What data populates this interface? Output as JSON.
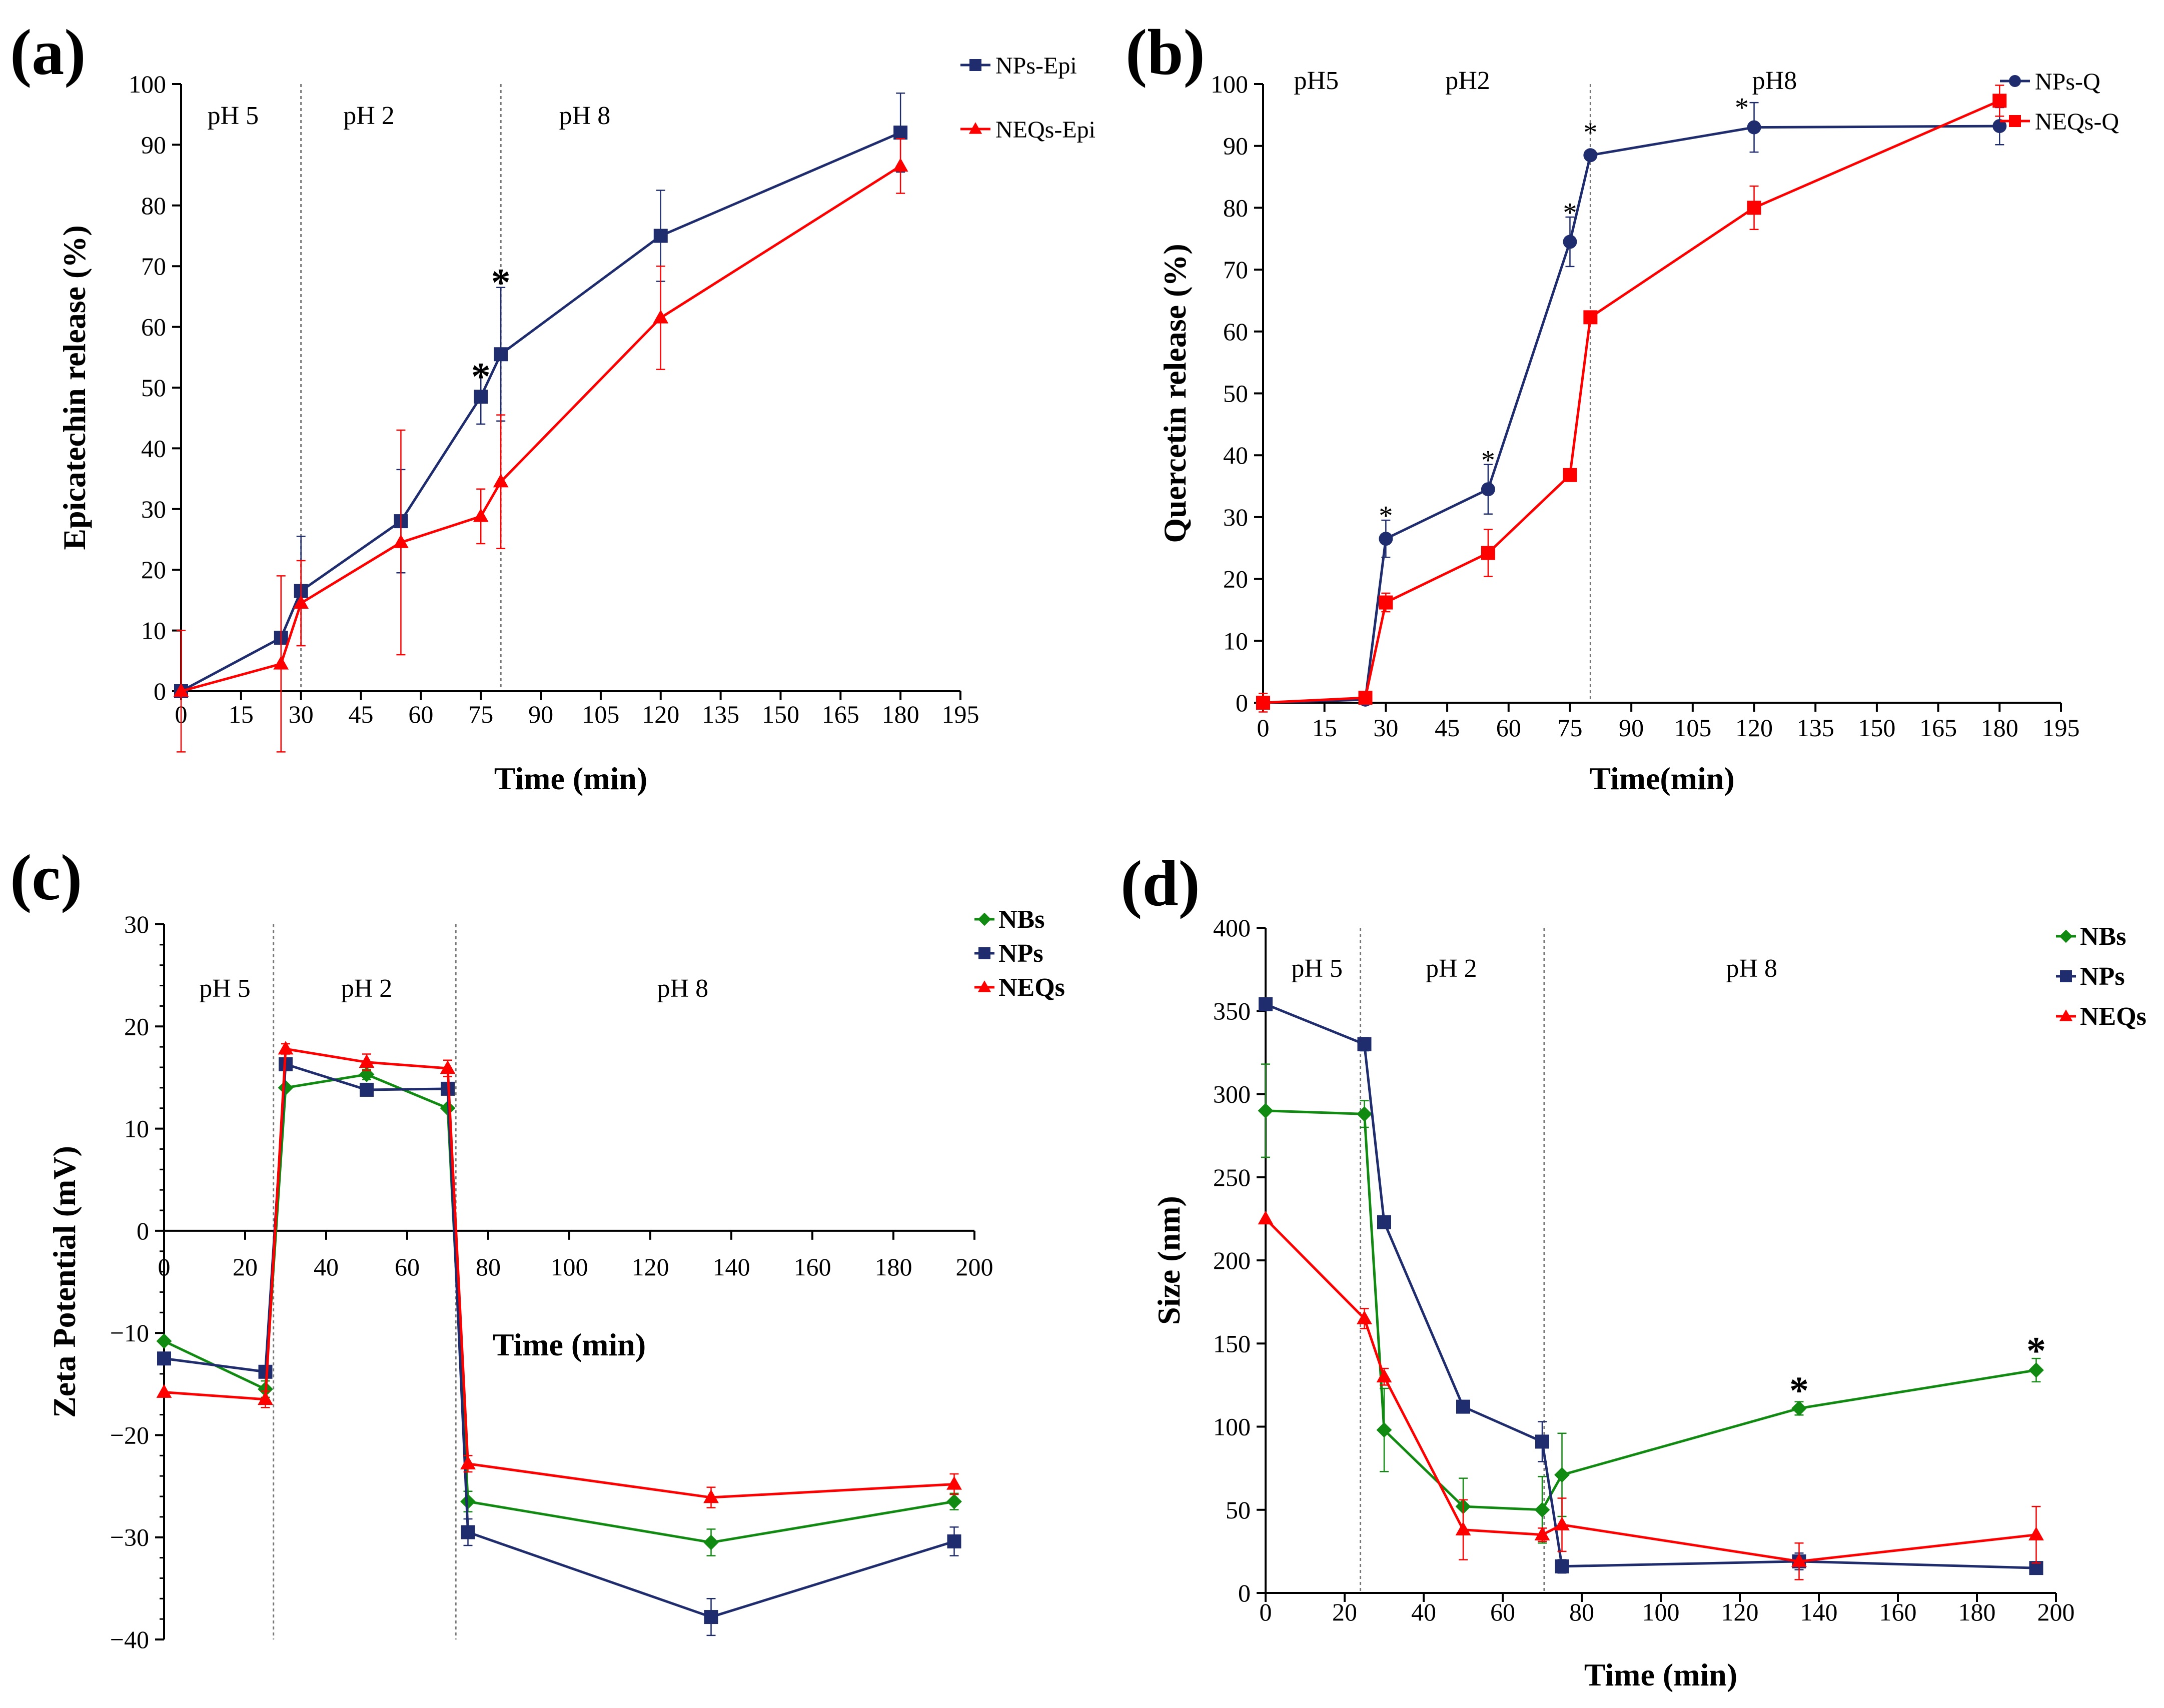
{
  "chart_data": [
    {
      "id": "a",
      "type": "line",
      "panel_label": "(a)",
      "xlabel": "Time (min)",
      "ylabel": "Epicatechin  release (%)",
      "xlim": [
        0,
        195
      ],
      "ylim": [
        0,
        100
      ],
      "xticks": [
        0,
        15,
        30,
        45,
        60,
        75,
        90,
        105,
        120,
        135,
        150,
        165,
        180,
        195
      ],
      "yticks": [
        0,
        10,
        20,
        30,
        40,
        50,
        60,
        70,
        80,
        90,
        100
      ],
      "ph_labels": [
        {
          "text": "pH 5",
          "x": 13
        },
        {
          "text": "pH 2",
          "x": 47
        },
        {
          "text": "pH 8",
          "x": 101
        }
      ],
      "dividers": [
        30,
        80
      ],
      "legend": [
        "NPs-Epi",
        "NEQs-Epi"
      ],
      "series": [
        {
          "name": "NPs-Epi",
          "color": "#1f2d6e",
          "marker": "square",
          "x": [
            0,
            25,
            30,
            55,
            75,
            80,
            120,
            180
          ],
          "y": [
            0,
            8.8,
            16.5,
            28,
            48.5,
            55.5,
            75,
            92
          ],
          "err": [
            0,
            0,
            9,
            8.5,
            4.5,
            11,
            7.5,
            6.5
          ]
        },
        {
          "name": "NEQs-Epi",
          "color": "#ff0000",
          "marker": "triangle",
          "x": [
            0,
            25,
            30,
            55,
            75,
            80,
            120,
            180
          ],
          "y": [
            0,
            4.5,
            14.5,
            24.5,
            28.8,
            34.5,
            61.5,
            86.5
          ],
          "err": [
            10,
            14.5,
            7,
            18.5,
            4.5,
            11,
            8.5,
            4.5
          ]
        }
      ],
      "annotations": [
        {
          "text": "*",
          "x": 75,
          "y": 53
        },
        {
          "text": "*",
          "x": 80,
          "y": 68.5
        }
      ]
    },
    {
      "id": "b",
      "type": "line",
      "panel_label": "(b)",
      "xlabel": "Time(min)",
      "ylabel": "Quercetin release (%)",
      "xlim": [
        0,
        195
      ],
      "ylim": [
        0,
        100
      ],
      "xticks": [
        0,
        15,
        30,
        45,
        60,
        75,
        90,
        105,
        120,
        135,
        150,
        165,
        180,
        195
      ],
      "yticks": [
        0,
        10,
        20,
        30,
        40,
        50,
        60,
        70,
        80,
        90,
        100
      ],
      "ph_labels": [
        {
          "text": "pH5",
          "x": 13
        },
        {
          "text": "pH2",
          "x": 50
        },
        {
          "text": "pH8",
          "x": 125
        }
      ],
      "dividers": [
        80
      ],
      "legend": [
        "NPs-Q",
        "NEQs-Q"
      ],
      "series": [
        {
          "name": "NPs-Q",
          "color": "#1f2d6e",
          "marker": "circle",
          "x": [
            0,
            25,
            30,
            55,
            75,
            80,
            120,
            180
          ],
          "y": [
            0,
            0.5,
            26.5,
            34.5,
            74.5,
            88.5,
            93,
            93.2
          ],
          "err": [
            0,
            0,
            3,
            4,
            4,
            0.8,
            4,
            3
          ]
        },
        {
          "name": "NEQs-Q",
          "color": "#ff0000",
          "marker": "square",
          "x": [
            0,
            25,
            30,
            55,
            75,
            80,
            120,
            180
          ],
          "y": [
            0,
            0.8,
            16.2,
            24.2,
            36.8,
            62.3,
            80,
            97.3
          ],
          "err": [
            1.5,
            0,
            1.5,
            3.8,
            0.8,
            1,
            3.5,
            2.5
          ]
        }
      ],
      "annotations": [
        {
          "text": "*",
          "x": 30,
          "y": 30.5
        },
        {
          "text": "*",
          "x": 55,
          "y": 39.5
        },
        {
          "text": "*",
          "x": 75,
          "y": 79.5
        },
        {
          "text": "*",
          "x": 80,
          "y": 92.5
        },
        {
          "text": "*",
          "x": 117,
          "y": 96.5
        }
      ]
    },
    {
      "id": "c",
      "type": "line",
      "panel_label": "(c)",
      "xlabel": "Time (min)",
      "ylabel": "Zeta Potential (mV)",
      "xlim": [
        0,
        200
      ],
      "ylim": [
        -40,
        30
      ],
      "xticks": [
        0,
        20,
        40,
        60,
        80,
        100,
        120,
        140,
        160,
        180,
        200
      ],
      "yticks": [
        -40,
        -30,
        -20,
        -10,
        0,
        10,
        20,
        30
      ],
      "ph_labels": [
        {
          "text": "pH 5",
          "x": 15
        },
        {
          "text": "pH 2",
          "x": 50
        },
        {
          "text": "pH 8",
          "x": 128
        }
      ],
      "dividers": [
        27,
        72
      ],
      "legend": [
        "NBs",
        "NPs",
        "NEQs"
      ],
      "series": [
        {
          "name": "NBs",
          "color": "#108a10",
          "marker": "diamond",
          "x": [
            0,
            25,
            30,
            50,
            70,
            75,
            135,
            195
          ],
          "y": [
            -10.8,
            -15.5,
            14,
            15.3,
            12,
            -26.5,
            -30.5,
            -26.5
          ],
          "err": [
            0,
            0.8,
            0,
            0.5,
            0,
            1,
            1.3,
            0.8
          ]
        },
        {
          "name": "NPs",
          "color": "#1f2d6e",
          "marker": "square",
          "x": [
            0,
            25,
            30,
            50,
            70,
            75,
            135,
            195
          ],
          "y": [
            -12.5,
            -13.8,
            16.3,
            13.8,
            13.9,
            -29.5,
            -37.8,
            -30.4
          ],
          "err": [
            0,
            0,
            0,
            0,
            0,
            1.3,
            1.8,
            1.4
          ]
        },
        {
          "name": "NEQs",
          "color": "#ff0000",
          "marker": "triangle",
          "x": [
            0,
            25,
            30,
            50,
            70,
            75,
            135,
            195
          ],
          "y": [
            -15.8,
            -16.5,
            17.8,
            16.5,
            15.9,
            -22.8,
            -26.1,
            -24.8
          ],
          "err": [
            0,
            0.8,
            0.5,
            0.8,
            0.8,
            0.8,
            1,
            1
          ]
        }
      ],
      "annotations": []
    },
    {
      "id": "d",
      "type": "line",
      "panel_label": "(d)",
      "xlabel": "Time (min)",
      "ylabel": "Size (nm)",
      "xlim": [
        0,
        200
      ],
      "ylim": [
        0,
        400
      ],
      "xticks": [
        0,
        20,
        40,
        60,
        80,
        100,
        120,
        140,
        160,
        180,
        200
      ],
      "yticks": [
        0,
        50,
        100,
        150,
        200,
        250,
        300,
        350,
        400
      ],
      "ph_labels": [
        {
          "text": "pH 5",
          "x": 13
        },
        {
          "text": "pH 2",
          "x": 47
        },
        {
          "text": "pH 8",
          "x": 123
        }
      ],
      "dividers": [
        24,
        70.5
      ],
      "legend": [
        "NBs",
        "NPs",
        "NEQs"
      ],
      "series": [
        {
          "name": "NBs",
          "color": "#108a10",
          "marker": "diamond",
          "x": [
            0,
            25,
            30,
            50,
            70,
            75,
            135,
            195
          ],
          "y": [
            290,
            288,
            98,
            52,
            50,
            71,
            111,
            134
          ],
          "err": [
            28,
            8,
            25,
            17,
            20,
            25,
            4,
            7
          ]
        },
        {
          "name": "NPs",
          "color": "#1f2d6e",
          "marker": "square",
          "x": [
            0,
            25,
            30,
            50,
            70,
            75,
            135,
            195
          ],
          "y": [
            354,
            330,
            223,
            112,
            91,
            16,
            19,
            15
          ],
          "err": [
            0,
            4,
            0,
            3,
            12,
            4,
            5,
            3
          ]
        },
        {
          "name": "NEQs",
          "color": "#ff0000",
          "marker": "triangle",
          "x": [
            0,
            25,
            30,
            50,
            70,
            75,
            135,
            195
          ],
          "y": [
            225,
            165,
            130,
            38,
            35,
            41,
            19,
            35
          ],
          "err": [
            0,
            6,
            5,
            18,
            4,
            16,
            11,
            17
          ]
        }
      ],
      "annotations": [
        {
          "text": "*",
          "x": 135,
          "y": 126
        },
        {
          "text": "*",
          "x": 195,
          "y": 150
        }
      ]
    }
  ]
}
